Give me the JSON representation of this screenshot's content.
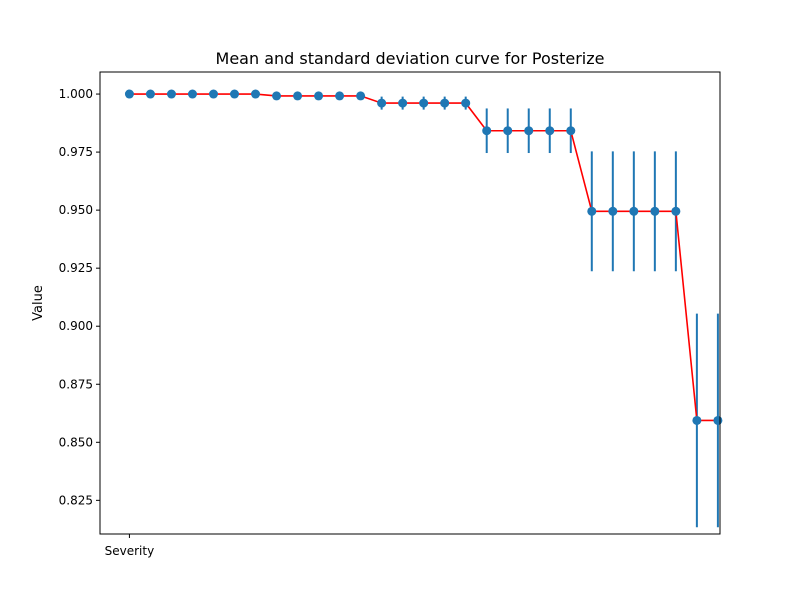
{
  "chart_data": {
    "type": "line",
    "title": "Mean and standard deviation curve for Posterize",
    "xlabel": "",
    "ylabel": "Value",
    "x_tick_labels": [
      "Severity"
    ],
    "y_ticks": [
      0.825,
      0.85,
      0.875,
      0.9,
      0.925,
      0.95,
      0.975,
      1.0
    ],
    "y_tick_labels": [
      "0.825",
      "0.850",
      "0.875",
      "0.900",
      "0.925",
      "0.950",
      "0.975",
      "1.000"
    ],
    "ylim": [
      0.8105,
      1.0095
    ],
    "xlim": [
      -1.4,
      28.1
    ],
    "grid": false,
    "line_color": "#ff0000",
    "marker_color": "#1f77b4",
    "errorbar_color": "#1f77b4",
    "series": [
      {
        "x": [
          0,
          1,
          2,
          3,
          4,
          5,
          6,
          7,
          8,
          9,
          10,
          11,
          12,
          13,
          14,
          15,
          16,
          17,
          18,
          19,
          20,
          21,
          22,
          23,
          24,
          25,
          26,
          27,
          28
        ],
        "mean": [
          1.0,
          1.0,
          1.0,
          1.0,
          1.0,
          1.0,
          1.0,
          0.9992,
          0.9992,
          0.9992,
          0.9992,
          0.9992,
          0.9961,
          0.9961,
          0.9961,
          0.9961,
          0.9961,
          0.9842,
          0.9842,
          0.9842,
          0.9842,
          0.9842,
          0.9495,
          0.9495,
          0.9495,
          0.9495,
          0.9495,
          0.8594,
          0.8594
        ],
        "std": [
          0,
          0,
          0,
          0,
          0,
          0,
          0,
          0.0003,
          0.0003,
          0.0003,
          0.0003,
          0.0003,
          0.0028,
          0.0028,
          0.0028,
          0.0028,
          0.0028,
          0.0096,
          0.0096,
          0.0096,
          0.0096,
          0.0096,
          0.0258,
          0.0258,
          0.0258,
          0.0258,
          0.0258,
          0.046,
          0.046
        ]
      }
    ]
  }
}
